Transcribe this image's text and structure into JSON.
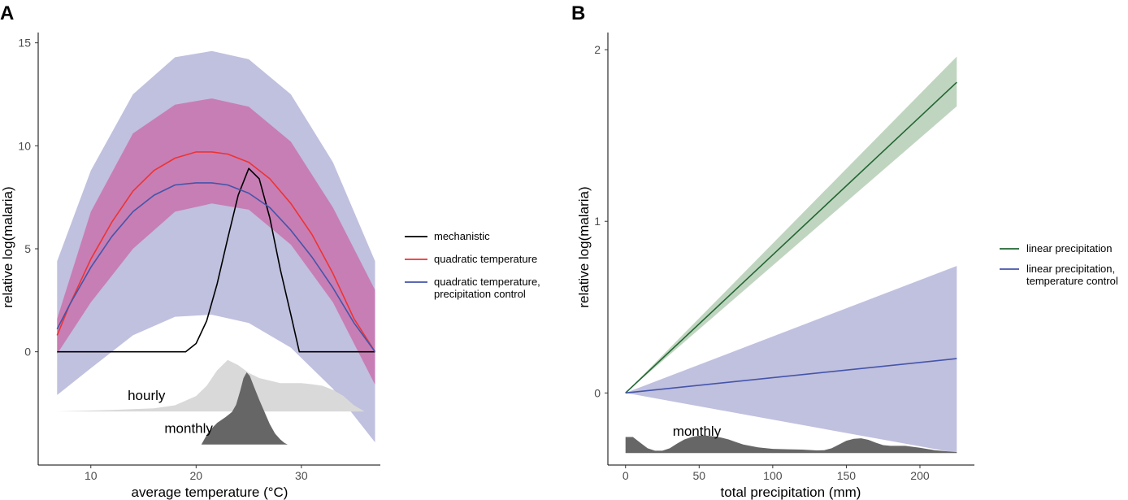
{
  "chart_data": [
    {
      "panel": "A",
      "type": "line",
      "xlabel": "average temperature (°C)",
      "ylabel": "relative log(malaria)",
      "xlim": [
        5,
        37.5
      ],
      "ylim": [
        -5.5,
        15.5
      ],
      "xticks": [
        10,
        20,
        30
      ],
      "yticks": [
        0,
        5,
        10,
        15
      ],
      "legend_position": "right",
      "series": [
        {
          "name": "mechanistic",
          "color": "#000000",
          "x": [
            6.8,
            19.0,
            20.0,
            21.0,
            22.0,
            23.0,
            24.0,
            25.0,
            26.0,
            27.0,
            28.0,
            29.0,
            29.8,
            37.0
          ],
          "y": [
            0,
            0,
            0.4,
            1.5,
            3.3,
            5.5,
            7.6,
            8.9,
            8.4,
            6.5,
            4.0,
            1.8,
            0,
            0
          ]
        },
        {
          "name": "quadratic temperature",
          "color": "#ee3333",
          "x": [
            6.8,
            8,
            10,
            12,
            14,
            16,
            18,
            20,
            21.5,
            23,
            25,
            27,
            29,
            31,
            33,
            35,
            37
          ],
          "y": [
            0.8,
            2.3,
            4.5,
            6.3,
            7.8,
            8.8,
            9.4,
            9.7,
            9.7,
            9.6,
            9.2,
            8.4,
            7.2,
            5.7,
            3.8,
            1.6,
            0.0
          ]
        },
        {
          "name": "quadratic temperature,\nprecipitation control",
          "color": "#4455aa",
          "x": [
            6.8,
            8,
            10,
            12,
            14,
            16,
            18,
            20,
            21.5,
            23,
            25,
            27,
            29,
            31,
            33,
            35,
            37
          ],
          "y": [
            1.1,
            2.3,
            4.1,
            5.6,
            6.8,
            7.6,
            8.1,
            8.2,
            8.2,
            8.1,
            7.7,
            7.0,
            5.9,
            4.6,
            3.1,
            1.4,
            0.0
          ]
        }
      ],
      "bands": [
        {
          "name": "quadratic temperature,\nprecipitation control",
          "color": "#9999cc",
          "x": [
            6.8,
            10,
            14,
            18,
            21.5,
            25,
            29,
            33,
            37
          ],
          "lower": [
            -2.1,
            -0.8,
            0.8,
            1.7,
            1.8,
            1.4,
            0.2,
            -1.8,
            -4.4
          ],
          "upper": [
            4.4,
            8.8,
            12.5,
            14.3,
            14.6,
            14.2,
            12.5,
            9.2,
            4.4
          ]
        },
        {
          "name": "quadratic temperature",
          "color": "#cc5599",
          "x": [
            6.8,
            10,
            14,
            18,
            21.5,
            25,
            29,
            33,
            37
          ],
          "lower": [
            -0.1,
            2.4,
            5.0,
            6.8,
            7.2,
            6.9,
            5.2,
            2.4,
            -1.6
          ],
          "upper": [
            1.6,
            6.8,
            10.6,
            12.0,
            12.3,
            11.9,
            10.2,
            7.0,
            3.0
          ]
        }
      ],
      "densities": [
        {
          "label": "hourly",
          "color": "#d9d9d9",
          "baseline": -2.9,
          "scale": 2.5,
          "x": [
            6.8,
            12,
            16,
            18,
            20,
            21,
            22,
            23,
            24,
            25,
            26,
            27,
            28,
            29,
            30,
            31,
            32,
            33,
            34,
            35,
            36
          ],
          "d": [
            0.0,
            0.03,
            0.06,
            0.12,
            0.3,
            0.5,
            0.8,
            1.0,
            0.9,
            0.75,
            0.65,
            0.6,
            0.55,
            0.55,
            0.55,
            0.53,
            0.5,
            0.42,
            0.3,
            0.12,
            0.0
          ]
        },
        {
          "label": "monthly",
          "color": "#666666",
          "baseline": -4.5,
          "scale": 3.5,
          "x": [
            20.5,
            21.2,
            22,
            22.8,
            23.4,
            23.8,
            24.2,
            24.5,
            24.8,
            25.1,
            25.5,
            26,
            26.5,
            27,
            27.5,
            28,
            28.4,
            28.7
          ],
          "d": [
            0.0,
            0.18,
            0.3,
            0.38,
            0.45,
            0.55,
            0.75,
            0.92,
            1.0,
            0.95,
            0.8,
            0.62,
            0.45,
            0.28,
            0.15,
            0.07,
            0.02,
            0.0
          ]
        }
      ]
    },
    {
      "panel": "B",
      "type": "line",
      "xlabel": "total precipitation (mm)",
      "ylabel": "relative log(malaria)",
      "xlim": [
        -12,
        237
      ],
      "ylim": [
        -0.42,
        2.1
      ],
      "xticks": [
        0,
        50,
        100,
        150,
        200
      ],
      "yticks": [
        0,
        1,
        2
      ],
      "legend_position": "right",
      "series": [
        {
          "name": "linear precipitation",
          "color": "#226633",
          "x": [
            0,
            225
          ],
          "y": [
            0,
            1.81
          ]
        },
        {
          "name": "linear precipitation,\ntemperature control",
          "color": "#4455aa",
          "x": [
            0,
            225
          ],
          "y": [
            0,
            0.2
          ]
        }
      ],
      "bands": [
        {
          "name": "linear precipitation,\ntemperature control",
          "color": "#9999cc",
          "x": [
            0,
            225
          ],
          "lower": [
            0,
            -0.35
          ],
          "upper": [
            0,
            0.74
          ]
        },
        {
          "name": "linear precipitation",
          "color": "#99bb99",
          "x": [
            0,
            225
          ],
          "lower": [
            0,
            1.67
          ],
          "upper": [
            0,
            1.96
          ]
        }
      ],
      "densities": [
        {
          "label": "monthly",
          "color": "#666666",
          "baseline": -0.35,
          "scale": 0.11,
          "x": [
            0,
            5,
            10,
            15,
            20,
            25,
            30,
            35,
            40,
            45,
            50,
            55,
            60,
            65,
            70,
            75,
            80,
            90,
            100,
            110,
            120,
            130,
            135,
            140,
            145,
            150,
            155,
            160,
            165,
            170,
            175,
            180,
            190,
            200,
            210,
            220,
            225
          ],
          "d": [
            0.85,
            0.85,
            0.55,
            0.25,
            0.12,
            0.12,
            0.25,
            0.5,
            0.72,
            0.85,
            0.92,
            0.92,
            0.88,
            0.82,
            0.72,
            0.58,
            0.45,
            0.3,
            0.22,
            0.2,
            0.18,
            0.14,
            0.15,
            0.25,
            0.45,
            0.65,
            0.75,
            0.78,
            0.7,
            0.55,
            0.42,
            0.38,
            0.38,
            0.28,
            0.15,
            0.08,
            0.05
          ]
        }
      ]
    }
  ]
}
